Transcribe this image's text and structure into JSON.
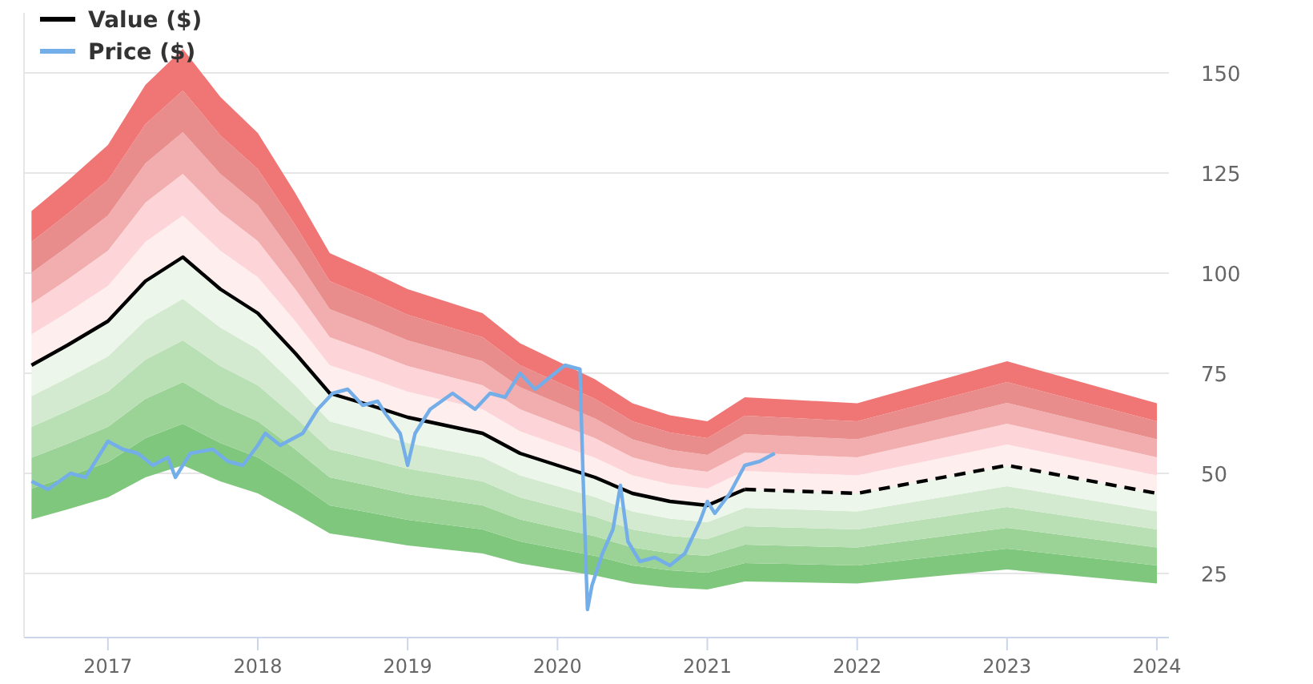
{
  "chart_data": {
    "type": "line",
    "x": [
      2016.49,
      2016.73,
      2017.0,
      2017.25,
      2017.5,
      2017.75,
      2018.0,
      2018.25,
      2018.48,
      2018.75,
      2019.0,
      2019.25,
      2019.5,
      2019.75,
      2020.0,
      2020.25,
      2020.5,
      2020.75,
      2021.0,
      2021.25,
      2022.0,
      2023.0,
      2024.0
    ],
    "series": [
      {
        "type": "line",
        "color": "#80c77e",
        "values": [
          null,
          null,
          null,
          null,
          null,
          null,
          null,
          null,
          null,
          null,
          null,
          null,
          null,
          null,
          null,
          null,
          null,
          null,
          null,
          null,
          null,
          null,
          null
        ],
        "lower": [
          38.5,
          41,
          44,
          49,
          52,
          48,
          45,
          40,
          35,
          33.5,
          32,
          31,
          30,
          27.5,
          26,
          24.5,
          22.5,
          21.5,
          21,
          23,
          22.5,
          26,
          22.5
        ],
        "upper": [
          46.2,
          49.2,
          52.8,
          58.8,
          62.4,
          57.6,
          54,
          48,
          42,
          40.2,
          38.4,
          37.2,
          36,
          33,
          31.2,
          29.4,
          27,
          25.8,
          25.2,
          27.6,
          27,
          31.2,
          27
        ]
      },
      {
        "type": "line",
        "color": "#9bd296",
        "values": [
          null,
          null,
          null,
          null,
          null,
          null,
          null,
          null,
          null,
          null,
          null,
          null,
          null,
          null,
          null,
          null,
          null,
          null,
          null,
          null,
          null,
          null,
          null
        ],
        "lower": [
          46.2,
          49.2,
          52.8,
          58.8,
          62.4,
          57.6,
          54,
          48,
          42,
          40.2,
          38.4,
          37.2,
          36,
          33,
          31.2,
          29.4,
          27,
          25.8,
          25.2,
          27.6,
          27,
          31.2,
          27
        ],
        "upper": [
          53.9,
          57.4,
          61.6,
          68.6,
          72.8,
          67.2,
          63,
          56,
          49,
          46.9,
          44.8,
          43.4,
          42,
          38.5,
          36.4,
          34.3,
          31.5,
          30.1,
          29.4,
          32.2,
          31.5,
          36.4,
          31.5
        ]
      },
      {
        "type": "line",
        "color": "#b9dfb4",
        "values": [
          null,
          null,
          null,
          null,
          null,
          null,
          null,
          null,
          null,
          null,
          null,
          null,
          null,
          null,
          null,
          null,
          null,
          null,
          null,
          null,
          null,
          null,
          null
        ],
        "lower": [
          53.9,
          57.4,
          61.6,
          68.6,
          72.8,
          67.2,
          63,
          56,
          49,
          46.9,
          44.8,
          43.4,
          42,
          38.5,
          36.4,
          34.3,
          31.5,
          30.1,
          29.4,
          32.2,
          31.5,
          36.4,
          31.5
        ],
        "upper": [
          61.6,
          65.6,
          70.4,
          78.4,
          83.2,
          76.8,
          72,
          64,
          56,
          53.6,
          51.2,
          49.6,
          48,
          44,
          41.6,
          39.2,
          36,
          34.4,
          33.6,
          36.8,
          36,
          41.6,
          36
        ]
      },
      {
        "type": "line",
        "color": "#d4ead0",
        "values": [
          null,
          null,
          null,
          null,
          null,
          null,
          null,
          null,
          null,
          null,
          null,
          null,
          null,
          null,
          null,
          null,
          null,
          null,
          null,
          null,
          null,
          null,
          null
        ],
        "lower": [
          61.6,
          65.6,
          70.4,
          78.4,
          83.2,
          76.8,
          72,
          64,
          56,
          53.6,
          51.2,
          49.6,
          48,
          44,
          41.6,
          39.2,
          36,
          34.4,
          33.6,
          36.8,
          36,
          41.6,
          36
        ],
        "upper": [
          69.3,
          73.8,
          79.2,
          88.2,
          93.6,
          86.4,
          81,
          72,
          63,
          60.3,
          57.6,
          55.8,
          54,
          49.5,
          46.8,
          44.1,
          40.5,
          38.7,
          37.8,
          41.4,
          40.5,
          46.8,
          40.5
        ]
      },
      {
        "type": "line",
        "color": "#edf6eb",
        "values": [
          null,
          null,
          null,
          null,
          null,
          null,
          null,
          null,
          null,
          null,
          null,
          null,
          null,
          null,
          null,
          null,
          null,
          null,
          null,
          null,
          null,
          null,
          null
        ],
        "lower": [
          69.3,
          73.8,
          79.2,
          88.2,
          93.6,
          86.4,
          81,
          72,
          63,
          60.3,
          57.6,
          55.8,
          54,
          49.5,
          46.8,
          44.1,
          40.5,
          38.7,
          37.8,
          41.4,
          40.5,
          46.8,
          40.5
        ],
        "upper": [
          77,
          82,
          88,
          98,
          104,
          96,
          90,
          80,
          70,
          67,
          64,
          62,
          60,
          55,
          52,
          49,
          45,
          43,
          42,
          46,
          45,
          52,
          45
        ]
      },
      {
        "type": "line",
        "color": "#ffeeee",
        "values": [
          null,
          null,
          null,
          null,
          null,
          null,
          null,
          null,
          null,
          null,
          null,
          null,
          null,
          null,
          null,
          null,
          null,
          null,
          null,
          null,
          null,
          null,
          null
        ],
        "lower": [
          77,
          82,
          88,
          98,
          104,
          96,
          90,
          80,
          70,
          67,
          64,
          62,
          60,
          55,
          52,
          49,
          45,
          43,
          42,
          46,
          45,
          52,
          45
        ],
        "upper": [
          84.7,
          90.2,
          96.8,
          107.8,
          114.4,
          105.6,
          99,
          88,
          77,
          73.7,
          70.4,
          68.2,
          66,
          60.5,
          57.2,
          53.9,
          49.5,
          47.3,
          46.2,
          50.6,
          49.5,
          57.2,
          49.5
        ]
      },
      {
        "type": "line",
        "color": "#fdd5d8",
        "values": [
          null,
          null,
          null,
          null,
          null,
          null,
          null,
          null,
          null,
          null,
          null,
          null,
          null,
          null,
          null,
          null,
          null,
          null,
          null,
          null,
          null,
          null,
          null
        ],
        "lower": [
          84.7,
          90.2,
          96.8,
          107.8,
          114.4,
          105.6,
          99,
          88,
          77,
          73.7,
          70.4,
          68.2,
          66,
          60.5,
          57.2,
          53.9,
          49.5,
          47.3,
          46.2,
          50.6,
          49.5,
          57.2,
          49.5
        ],
        "upper": [
          92.4,
          98.4,
          105.6,
          117.6,
          124.8,
          115.2,
          108,
          96,
          84,
          80.4,
          76.8,
          74.4,
          72,
          66,
          62.4,
          58.8,
          54,
          51.6,
          50.4,
          55.2,
          54,
          62.4,
          54
        ]
      },
      {
        "type": "line",
        "color": "#f2aeae",
        "values": [
          null,
          null,
          null,
          null,
          null,
          null,
          null,
          null,
          null,
          null,
          null,
          null,
          null,
          null,
          null,
          null,
          null,
          null,
          null,
          null,
          null,
          null,
          null
        ],
        "lower": [
          92.4,
          98.4,
          105.6,
          117.6,
          124.8,
          115.2,
          108,
          96,
          84,
          80.4,
          76.8,
          74.4,
          72,
          66,
          62.4,
          58.8,
          54,
          51.6,
          50.4,
          55.2,
          54,
          62.4,
          54
        ],
        "upper": [
          100.1,
          106.6,
          114.4,
          127.4,
          135.2,
          124.8,
          117,
          104,
          91,
          87.1,
          83.2,
          80.6,
          78,
          71.5,
          67.6,
          63.7,
          58.5,
          55.9,
          54.6,
          59.8,
          58.5,
          67.6,
          58.5
        ]
      },
      {
        "type": "line",
        "color": "#e88c8c",
        "values": [
          null,
          null,
          null,
          null,
          null,
          null,
          null,
          null,
          null,
          null,
          null,
          null,
          null,
          null,
          null,
          null,
          null,
          null,
          null,
          null,
          null,
          null,
          null
        ],
        "lower": [
          100.1,
          106.6,
          114.4,
          127.4,
          135.2,
          124.8,
          117,
          104,
          91,
          87.1,
          83.2,
          80.6,
          78,
          71.5,
          67.6,
          63.7,
          58.5,
          55.9,
          54.6,
          59.8,
          58.5,
          67.6,
          58.5
        ],
        "upper": [
          107.8,
          114.8,
          123.2,
          137.2,
          145.6,
          134.4,
          126,
          112,
          98,
          93.8,
          89.6,
          86.8,
          84,
          77,
          72.8,
          68.6,
          63,
          60.2,
          58.8,
          64.4,
          63,
          72.8,
          63
        ]
      },
      {
        "type": "line",
        "color": "#f07575",
        "values": [
          null,
          null,
          null,
          null,
          null,
          null,
          null,
          null,
          null,
          null,
          null,
          null,
          null,
          null,
          null,
          null,
          null,
          null,
          null,
          null,
          null,
          null,
          null
        ],
        "lower": [
          107.8,
          114.8,
          123.2,
          137.2,
          145.6,
          134.4,
          126,
          112,
          98,
          93.8,
          89.6,
          86.8,
          84,
          77,
          72.8,
          68.6,
          63,
          60.2,
          58.8,
          64.4,
          63,
          72.8,
          63
        ],
        "upper": [
          115.5,
          123,
          132,
          147,
          156,
          144,
          135,
          120,
          105,
          100.5,
          96,
          93,
          90,
          82.5,
          78,
          73.5,
          67.5,
          64.5,
          63,
          69,
          67.5,
          78,
          67.5
        ]
      },
      {
        "type": "line",
        "name": "Value ($)",
        "color": "#000000",
        "line_style": "solid",
        "values": [
          77,
          82,
          88,
          98,
          104,
          96,
          90,
          80,
          70,
          67,
          64,
          62,
          60,
          55,
          52,
          49,
          45,
          43,
          42,
          46,
          null,
          null,
          null
        ]
      },
      {
        "type": "line",
        "color": "#000000",
        "line_style": "dashed",
        "values": [
          null,
          null,
          null,
          null,
          null,
          null,
          null,
          null,
          null,
          null,
          null,
          null,
          null,
          null,
          null,
          null,
          null,
          null,
          null,
          46,
          45,
          52,
          45
        ]
      },
      {
        "type": "line",
        "name": "Price ($)",
        "color": "#74aee8",
        "line_style": "solid",
        "x": [
          2016.49,
          2016.6,
          2016.75,
          2016.85,
          2016.95,
          2017.0,
          2017.1,
          2017.2,
          2017.3,
          2017.4,
          2017.45,
          2017.55,
          2017.7,
          2017.8,
          2017.9,
          2018.0,
          2018.05,
          2018.15,
          2018.3,
          2018.4,
          2018.5,
          2018.6,
          2018.7,
          2018.8,
          2018.85,
          2018.95,
          2019.0,
          2019.05,
          2019.15,
          2019.3,
          2019.45,
          2019.55,
          2019.65,
          2019.75,
          2019.85,
          2019.95,
          2020.05,
          2020.15,
          2020.17,
          2020.2,
          2020.23,
          2020.3,
          2020.37,
          2020.42,
          2020.47,
          2020.55,
          2020.65,
          2020.75,
          2020.85,
          2020.95,
          2021.0,
          2021.05,
          2021.15,
          2021.25,
          2021.35,
          2021.45
        ],
        "values": [
          48,
          46,
          50,
          49,
          55,
          58,
          56,
          55,
          52,
          54,
          49,
          55,
          56,
          53,
          52,
          57,
          60,
          57,
          60,
          66,
          70,
          71,
          67,
          68,
          65,
          60,
          52,
          60,
          66,
          70,
          66,
          70,
          69,
          75,
          71,
          74,
          77,
          76,
          50,
          16,
          22,
          30,
          36,
          47,
          33,
          28,
          29,
          27,
          30,
          38,
          43,
          40,
          45,
          52,
          53,
          55
        ]
      }
    ],
    "xlim": [
      2016.44,
      2024.08
    ],
    "xticks": [
      2017,
      2018,
      2019,
      2020,
      2021,
      2022,
      2023,
      2024
    ],
    "ylim": [
      9,
      165
    ],
    "yticks": [
      25,
      50,
      75,
      100,
      125,
      150
    ],
    "grid": "y",
    "legend": "top left"
  }
}
